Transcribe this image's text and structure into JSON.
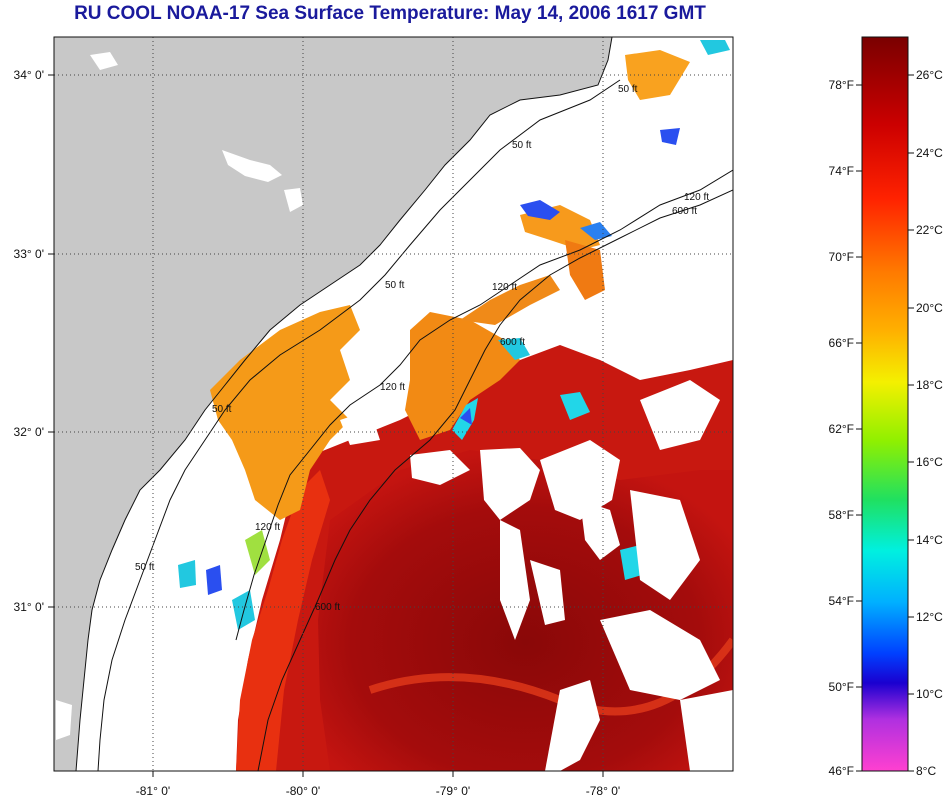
{
  "title": "RU COOL  NOAA-17  Sea Surface Temperature:  May 14, 2006 1617 GMT",
  "map": {
    "lon_labels": [
      "-81° 0'",
      "-80° 0'",
      "-79° 0'",
      "-78° 0'"
    ],
    "lat_labels": [
      "34° 0'",
      "33° 0'",
      "32° 0'",
      "31° 0'"
    ],
    "contour_labels": [
      "50 ft",
      "50 ft",
      "50 ft",
      "50 ft",
      "50 ft",
      "120 ft",
      "120 ft",
      "120 ft",
      "120 ft",
      "600 ft",
      "600 ft",
      "600 ft"
    ],
    "colors": {
      "land": "#c8c8c8",
      "cloud": "#ffffff",
      "sst_warm_dark": "#8c0a0a",
      "sst_warm": "#c01212",
      "sst_red": "#e02a10",
      "sst_orange": "#f58a12",
      "sst_cool_cyan": "#22d6e8",
      "sst_cool_blue": "#2a4ff0"
    }
  },
  "colorbar": {
    "fahrenheit_labels": [
      "78°F",
      "74°F",
      "70°F",
      "66°F",
      "62°F",
      "58°F",
      "54°F",
      "50°F",
      "46°F"
    ],
    "celsius_labels": [
      "26°C",
      "24°C",
      "22°C",
      "20°C",
      "18°C",
      "16°C",
      "14°C",
      "12°C",
      "10°C",
      "8°C"
    ]
  }
}
